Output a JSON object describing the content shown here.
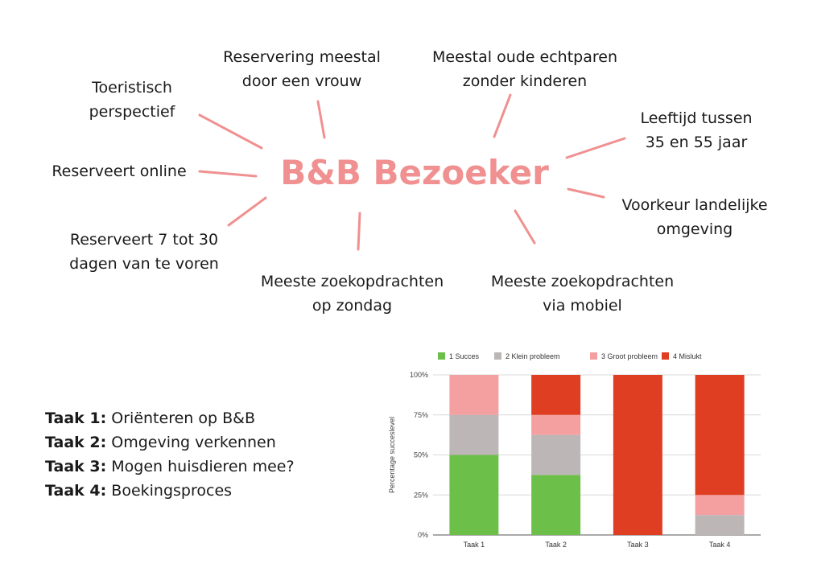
{
  "diagram": {
    "title": "B&B Bezoeker",
    "accent": "#f09090",
    "notes": [
      {
        "id": "toeristisch",
        "lines": [
          "Toeristisch",
          "perspectief"
        ]
      },
      {
        "id": "reservering",
        "lines": [
          "Reservering meestal",
          "door een vrouw"
        ]
      },
      {
        "id": "echtparen",
        "lines": [
          "Meestal oude echtparen",
          "zonder kinderen"
        ]
      },
      {
        "id": "leeftijd",
        "lines": [
          "Leeftijd tussen",
          "35 en 55 jaar"
        ]
      },
      {
        "id": "online",
        "lines": [
          "Reserveert online"
        ]
      },
      {
        "id": "landelijk",
        "lines": [
          "Voorkeur landelijke",
          "omgeving"
        ]
      },
      {
        "id": "dagen",
        "lines": [
          "Reserveert 7 tot 30",
          "dagen van te voren"
        ]
      },
      {
        "id": "zondag",
        "lines": [
          "Meeste zoekopdrachten",
          "op zondag"
        ]
      },
      {
        "id": "mobiel",
        "lines": [
          "Meeste zoekopdrachten",
          "via mobiel"
        ]
      }
    ]
  },
  "tasks": [
    {
      "label": "Taak 1:",
      "text": "Oriënteren op B&B"
    },
    {
      "label": "Taak 2:",
      "text": "Omgeving verkennen"
    },
    {
      "label": "Taak 3:",
      "text": "Mogen huisdieren mee?"
    },
    {
      "label": "Taak 4:",
      "text": "Boekingsproces"
    }
  ],
  "chart_data": {
    "type": "bar",
    "stacked": true,
    "categories": [
      "Taak 1",
      "Taak 2",
      "Taak 3",
      "Taak 4"
    ],
    "series": [
      {
        "name": "1 Succes",
        "color": "#6cc04a",
        "values": [
          50,
          37.5,
          0,
          0
        ]
      },
      {
        "name": "2 Klein probleem",
        "color": "#bcb6b6",
        "values": [
          25,
          25,
          0,
          12.5
        ]
      },
      {
        "name": "3 Groot probleem",
        "color": "#f4a0a0",
        "values": [
          25,
          12.5,
          0,
          12.5
        ]
      },
      {
        "name": "4 Mislukt",
        "color": "#e03e22",
        "values": [
          0,
          25,
          100,
          75
        ]
      }
    ],
    "ylabel": "Percentage succeslevel",
    "yticks": [
      "0%",
      "25%",
      "50%",
      "75%",
      "100%"
    ],
    "ylim": [
      0,
      100
    ],
    "grid": true,
    "legend": "top"
  }
}
